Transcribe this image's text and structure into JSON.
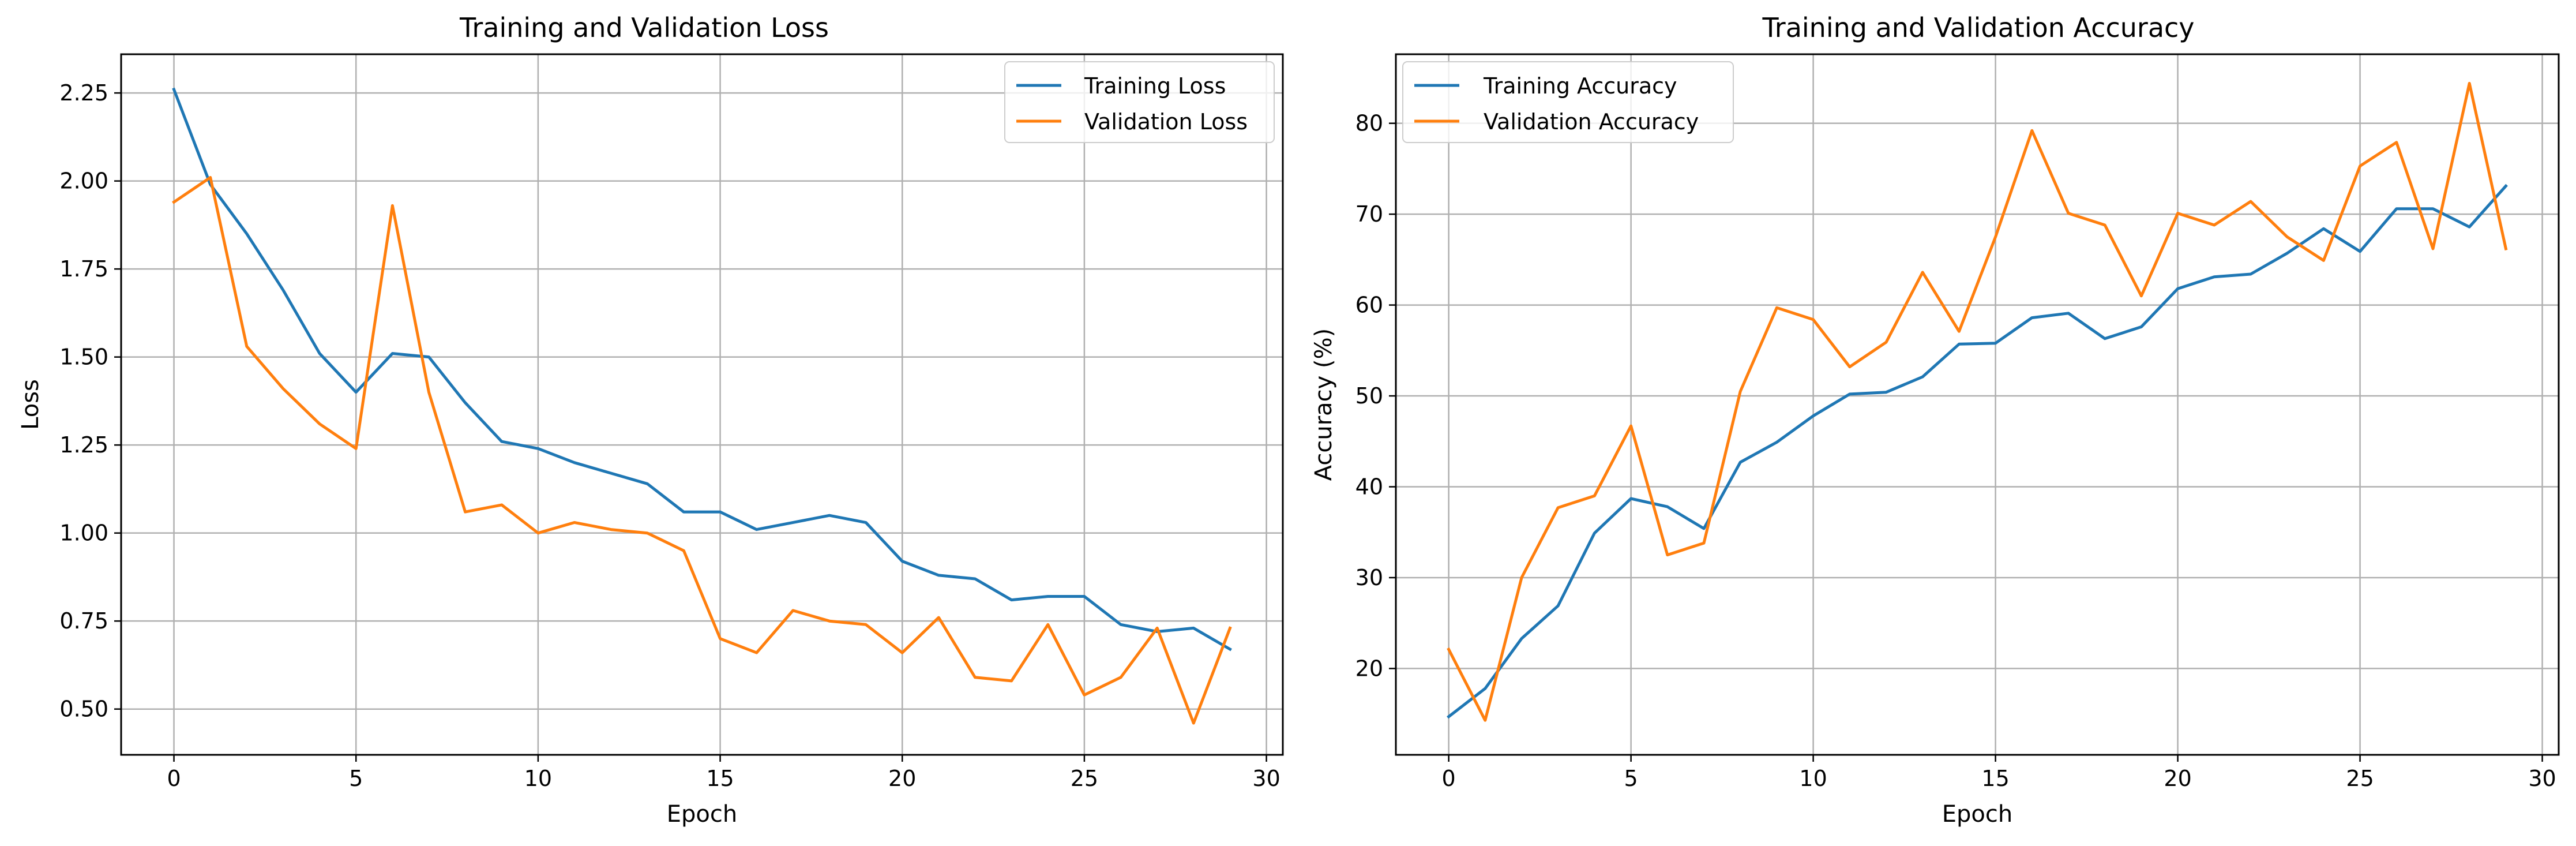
{
  "chart_data": [
    {
      "type": "line",
      "title": "Training and Validation Loss",
      "xlabel": "Epoch",
      "ylabel": "Loss",
      "xlim": [
        -1.45,
        30.45
      ],
      "ylim": [
        0.37,
        2.36
      ],
      "xticks": [
        0,
        5,
        10,
        15,
        20,
        25,
        30
      ],
      "yticks": [
        0.5,
        0.75,
        1.0,
        1.25,
        1.5,
        1.75,
        2.0,
        2.25
      ],
      "ytick_labels": [
        "0.50",
        "0.75",
        "1.00",
        "1.25",
        "1.50",
        "1.75",
        "2.00",
        "2.25"
      ],
      "grid": true,
      "legend": "top-right",
      "x": [
        0,
        1,
        2,
        3,
        4,
        5,
        6,
        7,
        8,
        9,
        10,
        11,
        12,
        13,
        14,
        15,
        16,
        17,
        18,
        19,
        20,
        21,
        22,
        23,
        24,
        25,
        26,
        27,
        28,
        29
      ],
      "series": [
        {
          "name": "Training Loss",
          "color": "#1f77b4",
          "values": [
            2.26,
            1.99,
            1.85,
            1.69,
            1.51,
            1.4,
            1.51,
            1.5,
            1.37,
            1.26,
            1.24,
            1.2,
            1.17,
            1.14,
            1.06,
            1.06,
            1.01,
            1.03,
            1.05,
            1.03,
            0.92,
            0.88,
            0.87,
            0.81,
            0.82,
            0.82,
            0.74,
            0.72,
            0.73,
            0.67
          ]
        },
        {
          "name": "Validation Loss",
          "color": "#ff7f0e",
          "values": [
            1.94,
            2.01,
            1.53,
            1.41,
            1.31,
            1.24,
            1.93,
            1.4,
            1.06,
            1.08,
            1.0,
            1.03,
            1.01,
            1.0,
            0.95,
            0.7,
            0.66,
            0.78,
            0.75,
            0.74,
            0.66,
            0.76,
            0.59,
            0.58,
            0.74,
            0.54,
            0.59,
            0.73,
            0.46,
            0.73
          ]
        }
      ]
    },
    {
      "type": "line",
      "title": "Training and Validation Accuracy",
      "xlabel": "Epoch",
      "ylabel": "Accuracy (%)",
      "xlim": [
        -1.45,
        30.45
      ],
      "ylim": [
        10.5,
        87.6
      ],
      "xticks": [
        0,
        5,
        10,
        15,
        20,
        25,
        30
      ],
      "yticks": [
        20,
        30,
        40,
        50,
        60,
        70,
        80
      ],
      "ytick_labels": [
        "20",
        "30",
        "40",
        "50",
        "60",
        "70",
        "80"
      ],
      "grid": true,
      "legend": "top-left",
      "x": [
        0,
        1,
        2,
        3,
        4,
        5,
        6,
        7,
        8,
        9,
        10,
        11,
        12,
        13,
        14,
        15,
        16,
        17,
        18,
        19,
        20,
        21,
        22,
        23,
        24,
        25,
        26,
        27,
        28,
        29
      ],
      "series": [
        {
          "name": "Training Accuracy",
          "color": "#1f77b4",
          "values": [
            14.7,
            17.8,
            23.3,
            26.9,
            34.9,
            38.7,
            37.8,
            35.4,
            42.7,
            44.9,
            47.8,
            50.2,
            50.4,
            52.1,
            55.7,
            55.8,
            58.6,
            59.1,
            56.3,
            57.6,
            61.8,
            63.1,
            63.4,
            65.7,
            68.4,
            65.9,
            70.6,
            70.6,
            68.6,
            73.1
          ]
        },
        {
          "name": "Validation Accuracy",
          "color": "#ff7f0e",
          "values": [
            22.1,
            14.3,
            30.0,
            37.7,
            39.0,
            46.7,
            32.5,
            33.8,
            50.5,
            59.7,
            58.4,
            53.2,
            55.9,
            63.6,
            57.1,
            67.5,
            79.2,
            70.1,
            68.8,
            61.0,
            70.1,
            68.8,
            71.4,
            67.5,
            64.9,
            75.3,
            77.9,
            66.2,
            84.4,
            66.2
          ]
        }
      ]
    }
  ]
}
